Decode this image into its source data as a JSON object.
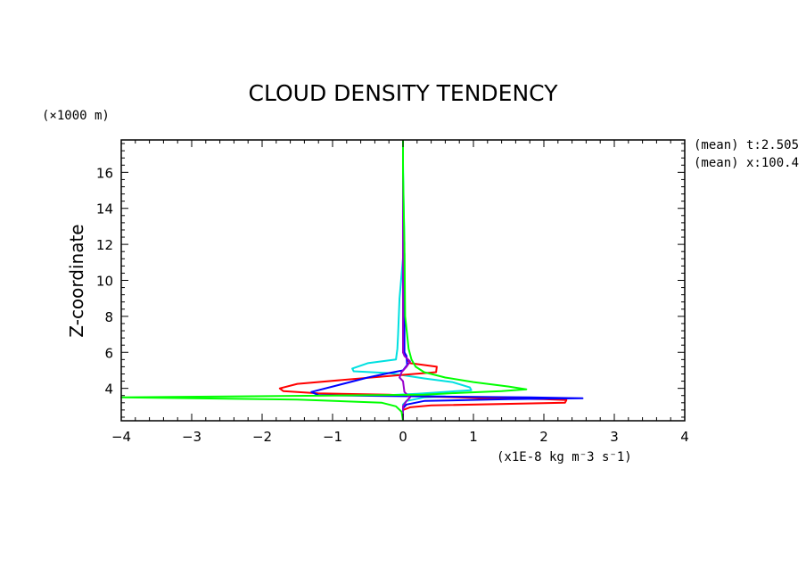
{
  "chart_data": {
    "type": "line",
    "title": "CLOUD DENSITY TENDENCY",
    "ylabel": "Z-coordinate",
    "yunit": "(×1000 m)",
    "xunit": "(x1E-8 kg m⁻3 s⁻1)",
    "xlim": [
      -4,
      4
    ],
    "ylim": [
      2.2,
      17.8
    ],
    "xticks": [
      -4,
      -3,
      -2,
      -1,
      0,
      1,
      2,
      3,
      4
    ],
    "yticks": [
      4,
      6,
      8,
      10,
      12,
      14,
      16
    ],
    "annotations": [
      "(mean) t:2.505",
      "(mean) x:100.4"
    ],
    "grid": false,
    "series": [
      {
        "color": "#00e0e0",
        "points": [
          [
            0,
            17.8
          ],
          [
            0,
            16.5
          ],
          [
            0.01,
            14
          ],
          [
            0.02,
            12
          ],
          [
            0.01,
            11.7
          ],
          [
            -0.05,
            9
          ],
          [
            -0.07,
            7
          ],
          [
            -0.08,
            6.2
          ],
          [
            -0.1,
            5.6
          ],
          [
            -0.5,
            5.4
          ],
          [
            -0.72,
            5.1
          ],
          [
            -0.7,
            4.95
          ],
          [
            -0.2,
            4.85
          ],
          [
            0.3,
            4.55
          ],
          [
            0.7,
            4.35
          ],
          [
            0.95,
            4.05
          ],
          [
            0.97,
            3.9
          ],
          [
            0.2,
            3.7
          ],
          [
            -0.2,
            3.62
          ],
          [
            0.6,
            3.55
          ],
          [
            0.3,
            3.5
          ],
          [
            0.05,
            3.3
          ],
          [
            0,
            3.1
          ],
          [
            0,
            2.2
          ]
        ]
      },
      {
        "color": "#ff0000",
        "points": [
          [
            0,
            17.8
          ],
          [
            0,
            11
          ],
          [
            0,
            6
          ],
          [
            0.05,
            5.7
          ],
          [
            0.1,
            5.4
          ],
          [
            0.48,
            5.2
          ],
          [
            0.47,
            4.9
          ],
          [
            0,
            4.75
          ],
          [
            -0.6,
            4.55
          ],
          [
            -1.5,
            4.25
          ],
          [
            -1.75,
            4.0
          ],
          [
            -1.7,
            3.85
          ],
          [
            -1.2,
            3.72
          ],
          [
            -0.2,
            3.65
          ],
          [
            0.3,
            3.55
          ],
          [
            1.2,
            3.45
          ],
          [
            2.0,
            3.4
          ],
          [
            2.32,
            3.35
          ],
          [
            2.3,
            3.2
          ],
          [
            0.4,
            3.05
          ],
          [
            0.1,
            2.95
          ],
          [
            0,
            2.8
          ],
          [
            0,
            2.2
          ]
        ]
      },
      {
        "color": "#0000ff",
        "points": [
          [
            0,
            17.8
          ],
          [
            0,
            11.5
          ],
          [
            0.02,
            11.5
          ],
          [
            0.02,
            6
          ],
          [
            0.05,
            5.8
          ],
          [
            0.06,
            5.3
          ],
          [
            0,
            5.0
          ],
          [
            -0.2,
            4.85
          ],
          [
            -0.5,
            4.6
          ],
          [
            -0.9,
            4.2
          ],
          [
            -1.3,
            3.8
          ],
          [
            -1.2,
            3.62
          ],
          [
            0.4,
            3.55
          ],
          [
            1.8,
            3.5
          ],
          [
            2.55,
            3.45
          ],
          [
            1.5,
            3.4
          ],
          [
            0.3,
            3.3
          ],
          [
            0.05,
            3.1
          ],
          [
            0,
            2.9
          ],
          [
            0,
            2.2
          ]
        ]
      },
      {
        "color": "#9900cc",
        "points": [
          [
            0,
            17.8
          ],
          [
            0,
            6
          ],
          [
            0.02,
            5.8
          ],
          [
            0.1,
            5.5
          ],
          [
            0.05,
            5.2
          ],
          [
            -0.02,
            4.9
          ],
          [
            -0.05,
            4.6
          ],
          [
            0,
            4.4
          ],
          [
            0.02,
            3.8
          ],
          [
            0.1,
            3.5
          ],
          [
            0.05,
            3.3
          ],
          [
            0,
            3.0
          ],
          [
            0,
            2.2
          ]
        ]
      },
      {
        "color": "#00ff00",
        "points": [
          [
            0,
            17.8
          ],
          [
            0,
            16
          ],
          [
            0.02,
            12
          ],
          [
            0.03,
            8
          ],
          [
            0.08,
            6.2
          ],
          [
            0.12,
            5.6
          ],
          [
            0.18,
            5.2
          ],
          [
            0.3,
            4.9
          ],
          [
            0.6,
            4.6
          ],
          [
            1.0,
            4.35
          ],
          [
            1.5,
            4.1
          ],
          [
            1.75,
            3.95
          ],
          [
            1.4,
            3.85
          ],
          [
            0.8,
            3.75
          ],
          [
            0.3,
            3.65
          ],
          [
            -1.0,
            3.6
          ],
          [
            -2.5,
            3.55
          ],
          [
            -3.3,
            3.52
          ],
          [
            -4.0,
            3.5
          ],
          [
            -3.0,
            3.45
          ],
          [
            -1.5,
            3.38
          ],
          [
            -0.3,
            3.2
          ],
          [
            -0.1,
            3.0
          ],
          [
            -0.02,
            2.7
          ],
          [
            0,
            2.2
          ]
        ]
      }
    ]
  }
}
